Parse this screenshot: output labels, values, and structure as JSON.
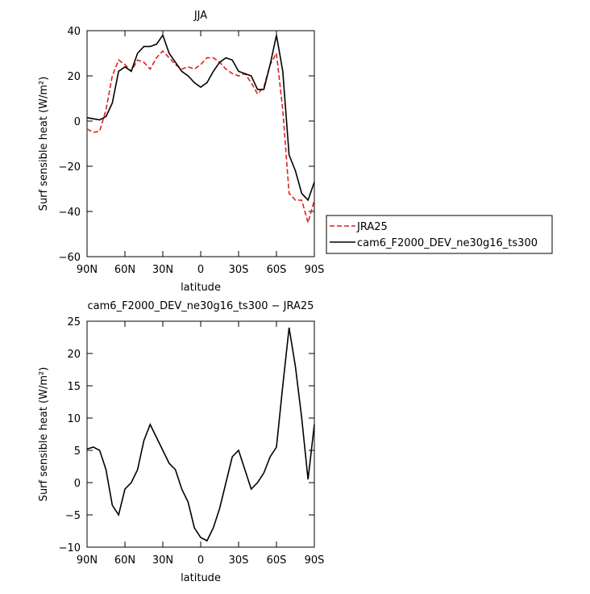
{
  "chart_data": [
    {
      "type": "line",
      "title": "JJA",
      "x_label": "latitude",
      "y_label": "Surf sensible heat (W/m²)",
      "x": [
        90,
        85,
        80,
        75,
        70,
        65,
        60,
        55,
        50,
        45,
        40,
        35,
        30,
        25,
        20,
        15,
        10,
        5,
        0,
        -5,
        -10,
        -15,
        -20,
        -25,
        -30,
        -35,
        -40,
        -45,
        -50,
        -55,
        -60,
        -65,
        -70,
        -75,
        -80,
        -85,
        -90
      ],
      "series": [
        {
          "name": "JRA25",
          "color": "#e0201b",
          "dash": true,
          "values": [
            -3.5,
            -5,
            -4.5,
            5,
            20,
            27,
            25,
            22,
            27,
            26,
            23,
            28,
            31,
            28,
            25,
            23,
            24,
            23,
            25,
            28,
            28,
            26,
            23,
            21,
            20,
            21,
            17,
            12,
            15,
            25,
            30,
            5,
            -32,
            -35,
            -35,
            -45,
            -35
          ]
        },
        {
          "name": "cam6_F2000_DEV_ne30g16_ts300",
          "color": "#000000",
          "dash": false,
          "values": [
            1.5,
            1,
            0.5,
            2,
            8,
            22,
            24,
            22,
            30,
            33,
            33,
            34,
            38,
            30,
            26,
            22,
            20,
            17,
            15,
            17,
            22,
            26,
            28,
            27,
            22,
            21,
            20,
            14,
            14,
            25,
            38,
            22,
            -15,
            -22,
            -32,
            -35,
            -27
          ]
        }
      ],
      "xlim": [
        90,
        -90
      ],
      "xticks": [
        {
          "value": 90,
          "label": "90N"
        },
        {
          "value": 60,
          "label": "60N"
        },
        {
          "value": 30,
          "label": "30N"
        },
        0,
        {
          "value": -30,
          "label": "30S"
        },
        {
          "value": -60,
          "label": "60S"
        },
        {
          "value": -90,
          "label": "90S"
        }
      ],
      "ylim": [
        -60,
        40
      ],
      "yticks": [
        {
          "value": -60,
          "label": "−60"
        },
        {
          "value": -40,
          "label": "−40"
        },
        {
          "value": -20,
          "label": "−20"
        },
        0,
        20,
        40
      ],
      "legend": "outside-right"
    },
    {
      "type": "line",
      "title": "cam6_F2000_DEV_ne30g16_ts300 − JRA25",
      "x_label": "latitude",
      "y_label": "Surf sensible heat (W/m²)",
      "x": [
        90,
        85,
        80,
        75,
        70,
        65,
        60,
        55,
        50,
        45,
        40,
        35,
        30,
        25,
        20,
        15,
        10,
        5,
        0,
        -5,
        -10,
        -15,
        -20,
        -25,
        -30,
        -35,
        -40,
        -45,
        -50,
        -55,
        -60,
        -65,
        -70,
        -75,
        -80,
        -85,
        -90
      ],
      "series": [
        {
          "color": "#000000",
          "values": [
            5.2,
            5.5,
            5,
            2,
            -3.5,
            -5,
            -1,
            0,
            2,
            6.5,
            9,
            7,
            5,
            3,
            2,
            -1,
            -3,
            -7,
            -8.5,
            -9,
            -7,
            -4,
            0,
            4,
            5,
            2,
            -1,
            0,
            1.5,
            4,
            5.5,
            15,
            24,
            18,
            10,
            0.5,
            9
          ]
        }
      ],
      "xlim": [
        90,
        -90
      ],
      "xticks": [
        {
          "value": 90,
          "label": "90N"
        },
        {
          "value": 60,
          "label": "60N"
        },
        {
          "value": 30,
          "label": "30N"
        },
        0,
        {
          "value": -30,
          "label": "30S"
        },
        {
          "value": -60,
          "label": "60S"
        },
        {
          "value": -90,
          "label": "90S"
        }
      ],
      "ylim": [
        -10,
        25
      ],
      "yticks": [
        {
          "value": -10,
          "label": "−10"
        },
        {
          "value": -5,
          "label": "−5"
        },
        0,
        5,
        10,
        15,
        20,
        25
      ]
    }
  ]
}
